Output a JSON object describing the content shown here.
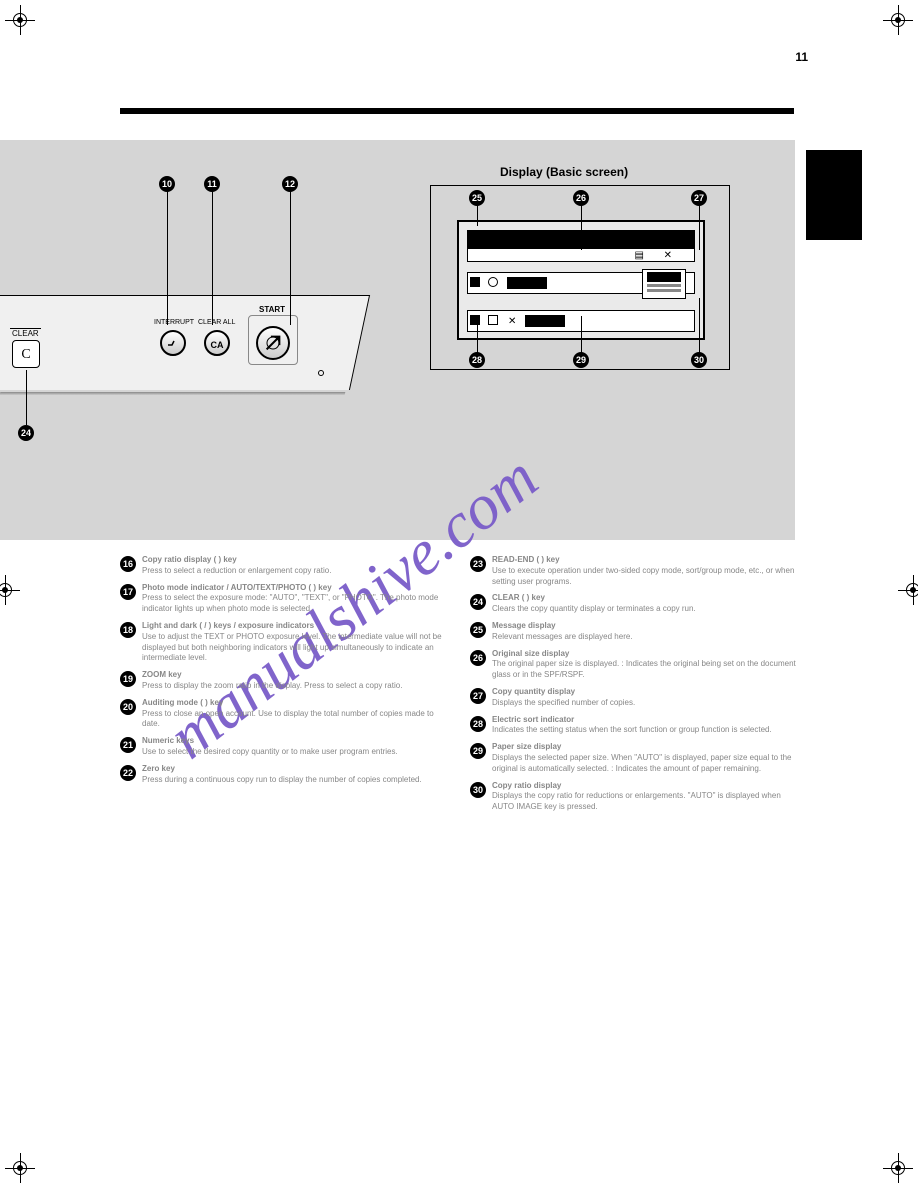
{
  "page_number": "11",
  "header_rule_color": "#000000",
  "gray_bg": "#d5d5d5",
  "watermark": "manualshive.com",
  "watermark_color": "#7a5cc9",
  "panel": {
    "interrupt_label": "INTERRUPT",
    "clearall_label": "CLEAR ALL",
    "ca_text": "CA",
    "start_label": "START",
    "clear_label": "CLEAR",
    "clear_key": "C"
  },
  "callouts_top": {
    "n10": "10",
    "n11": "11",
    "n12": "12",
    "n24": "24",
    "n25": "25",
    "n26": "26",
    "n27": "27",
    "n28": "28",
    "n29": "29",
    "n30": "30"
  },
  "display_title": "Display (Basic screen)",
  "items_left": [
    {
      "n": "16",
      "title": "Copy ratio display ( ) key",
      "desc": "Press to select a reduction or enlargement copy ratio."
    },
    {
      "n": "17",
      "title": "Photo mode indicator / AUTO/TEXT/PHOTO ( ) key",
      "desc": "Press to select the exposure mode: \"AUTO\", \"TEXT\", or \"PHOTO\". The photo mode indicator lights up when photo mode is selected."
    },
    {
      "n": "18",
      "title": "Light and dark ( / ) keys / exposure indicators",
      "desc": "Use to adjust the TEXT or PHOTO exposure level. The intermediate value will not be displayed but both neighboring indicators will light up simultaneously to indicate an intermediate level."
    },
    {
      "n": "19",
      "title": "ZOOM key",
      "desc": "Press to display the zoom ratio in the display. Press to select a copy ratio."
    },
    {
      "n": "20",
      "title": "Auditing mode ( ) key",
      "desc": "Press to close an open account. Use to display the total number of copies made to date."
    },
    {
      "n": "21",
      "title": "Numeric keys",
      "desc": "Use to select the desired copy quantity or to make user program entries."
    },
    {
      "n": "22",
      "title": "Zero key",
      "desc": "Press during a continuous copy run to display the number of copies completed."
    }
  ],
  "items_right": [
    {
      "n": "23",
      "title": "READ-END ( ) key",
      "desc": "Use to execute operation under two-sided copy mode, sort/group mode, etc., or when setting user programs."
    },
    {
      "n": "24",
      "title": "CLEAR ( ) key",
      "desc": "Clears the copy quantity display or terminates a copy run."
    },
    {
      "n": "25",
      "title": "Message display",
      "desc": "Relevant messages are displayed here."
    },
    {
      "n": "26",
      "title": "Original size display",
      "desc": "The original paper size is displayed. : Indicates the original being set on the document glass or in the SPF/RSPF."
    },
    {
      "n": "27",
      "title": "Copy quantity display",
      "desc": "Displays the specified number of copies."
    },
    {
      "n": "28",
      "title": "Electric sort indicator",
      "desc": "Indicates the setting status when the sort function or group function is selected."
    },
    {
      "n": "29",
      "title": "Paper size display",
      "desc": "Displays the selected paper size. When \"AUTO\" is displayed, paper size equal to the original is automatically selected. : Indicates the amount of paper remaining."
    },
    {
      "n": "30",
      "title": "Copy ratio display",
      "desc": "Displays the copy ratio for reductions or enlargements. \"AUTO\" is displayed when AUTO IMAGE key is pressed."
    }
  ]
}
